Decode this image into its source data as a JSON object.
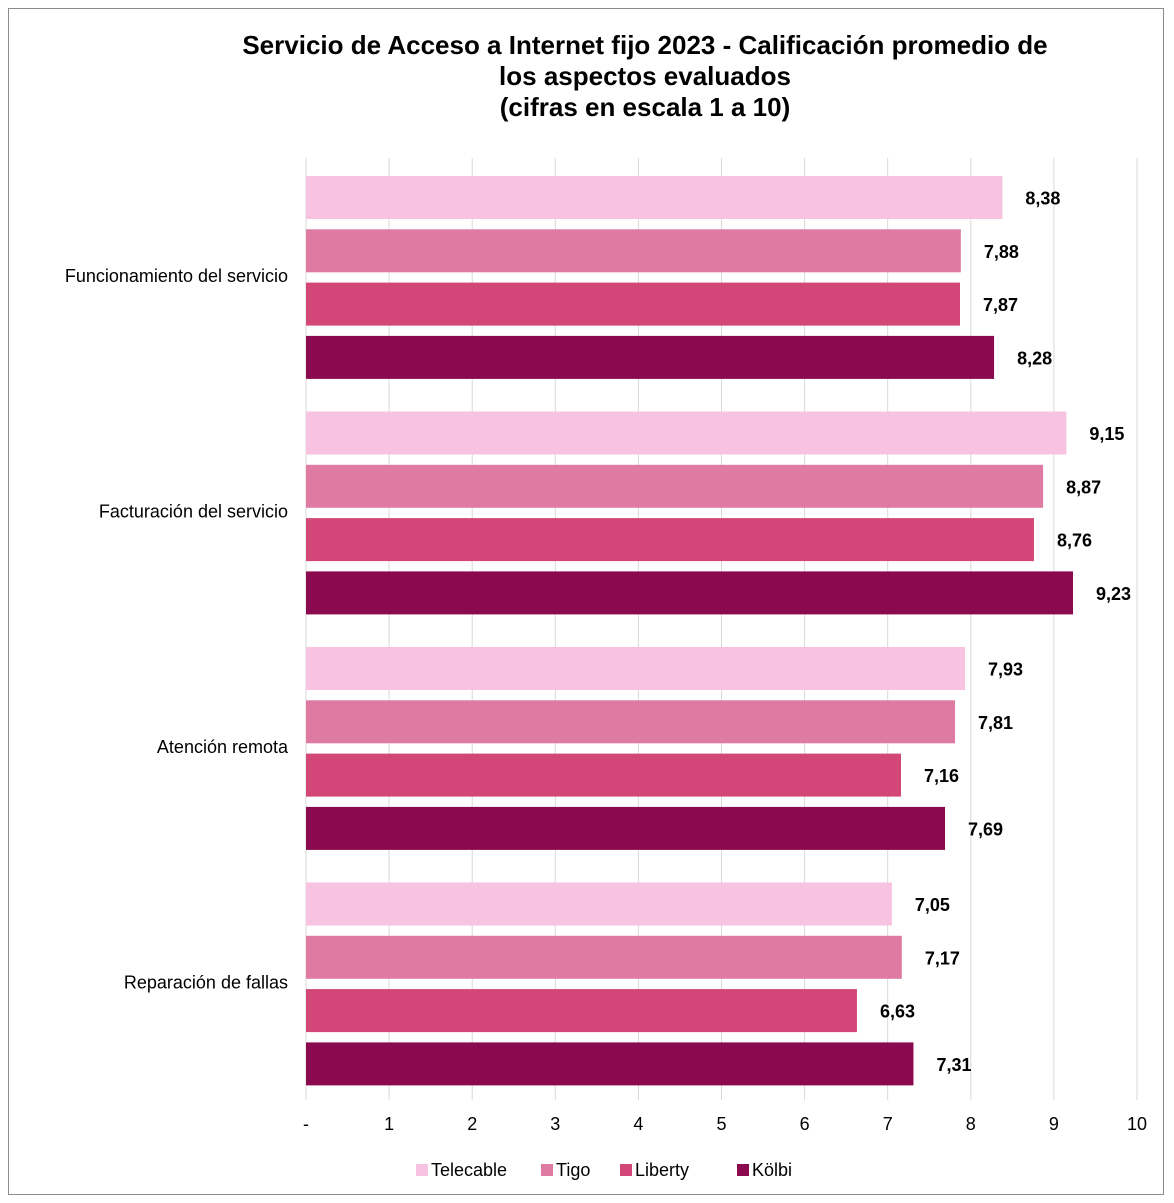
{
  "chart_data": {
    "type": "bar",
    "orientation": "horizontal",
    "title": [
      "Servicio de Acceso a Internet fijo 2023 - Calificación promedio de",
      "los aspectos evaluados",
      "(cifras en escala 1 a 10)"
    ],
    "categories": [
      "Funcionamiento del servicio",
      "Facturación del servicio",
      "Atención remota",
      "Reparación de fallas"
    ],
    "series": [
      {
        "name": "Telecable",
        "color": "#f7c3e0",
        "values": [
          8.38,
          9.15,
          7.93,
          7.05
        ],
        "labels": [
          "8,38",
          "9,15",
          "7,93",
          "7,05"
        ]
      },
      {
        "name": "Tigo",
        "color": "#df7aa2",
        "values": [
          7.88,
          8.87,
          7.81,
          7.17
        ],
        "labels": [
          "7,88",
          "8,87",
          "7,81",
          "7,17"
        ]
      },
      {
        "name": "Liberty",
        "color": "#d24777",
        "values": [
          7.87,
          8.76,
          7.16,
          6.63
        ],
        "labels": [
          "7,87",
          "8,76",
          "7,16",
          "6,63"
        ]
      },
      {
        "name": "Kölbi",
        "color": "#8b0a4f",
        "values": [
          8.28,
          9.23,
          7.69,
          7.31
        ],
        "labels": [
          "8,28",
          "9,23",
          "7,69",
          "7,31"
        ]
      }
    ],
    "xlim": [
      0,
      10
    ],
    "x_ticks": [
      "-",
      "1",
      "2",
      "3",
      "4",
      "5",
      "6",
      "7",
      "8",
      "9",
      "10"
    ],
    "grid": "vertical",
    "legend": "bottom"
  }
}
